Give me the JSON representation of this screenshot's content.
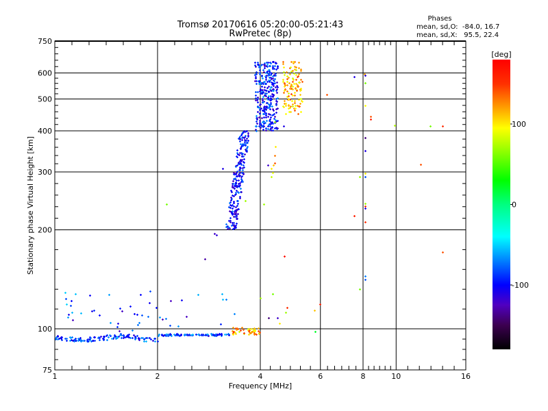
{
  "chart_data": {
    "type": "scatter",
    "title": "Tromsø 20170616 05:20:00-05:21:43",
    "subtitle": "RwPretec (8p)",
    "xlabel": "Frequency [MHz]",
    "ylabel": "Stationary phase Virtual Height [km]",
    "xscale": "log",
    "yscale": "log",
    "xlim": [
      1,
      16
    ],
    "ylim": [
      75,
      750
    ],
    "grid": true,
    "x_ticks": [
      1,
      2,
      4,
      6,
      8,
      10,
      16
    ],
    "x_tick_labels": [
      "1",
      "2",
      "4",
      "6",
      "8",
      "10",
      "16"
    ],
    "y_ticks": [
      75,
      100,
      200,
      300,
      400,
      500,
      600,
      750
    ],
    "y_tick_labels": [
      "75",
      "100",
      "200",
      "300",
      "400",
      "500",
      "600",
      "750"
    ],
    "grid_x": [
      2,
      4,
      6,
      8,
      10
    ],
    "grid_y": [
      100,
      200,
      300,
      400,
      500,
      600
    ],
    "stats": {
      "heading": "Phases",
      "o_line": "mean, sd,O:  -84.0, 16.7",
      "x_line": "mean, sd,X:   95.5, 22.4"
    },
    "colorbar": {
      "label": "[deg]",
      "range": [
        -180,
        180
      ],
      "ticks": [
        100,
        0,
        -100
      ],
      "tick_labels": [
        "100",
        "0",
        "-100"
      ],
      "stops": [
        [
          -180,
          "#000000"
        ],
        [
          -150,
          "#3c0050"
        ],
        [
          -125,
          "#5000c0"
        ],
        [
          -100,
          "#0000ff"
        ],
        [
          -70,
          "#0080ff"
        ],
        [
          -40,
          "#00ffff"
        ],
        [
          0,
          "#00ff80"
        ],
        [
          30,
          "#00ff00"
        ],
        [
          70,
          "#a0ff00"
        ],
        [
          95,
          "#ffff00"
        ],
        [
          120,
          "#ffa000"
        ],
        [
          150,
          "#ff3000"
        ],
        [
          180,
          "#ff0000"
        ]
      ]
    },
    "clusters": [
      {
        "name": "e-layer-trace",
        "f": [
          1.0,
          3.25
        ],
        "h": [
          92,
          97
        ],
        "phase": [
          -115,
          -55
        ],
        "n": 230
      },
      {
        "name": "e-layer-scatter",
        "f": [
          1.05,
          3.6
        ],
        "h": [
          98,
          132
        ],
        "phase": [
          -130,
          -50
        ],
        "n": 45
      },
      {
        "name": "sporadic-e-x",
        "f": [
          3.3,
          3.98
        ],
        "h": [
          96,
          101
        ],
        "phase": [
          80,
          150
        ],
        "n": 50
      },
      {
        "name": "f1-o-trace",
        "f": [
          3.15,
          3.72
        ],
        "h": [
          200,
          400
        ],
        "phase": [
          -125,
          -70
        ],
        "n": 230,
        "slope": true
      },
      {
        "name": "f2-o-trace",
        "f": [
          3.85,
          4.5
        ],
        "h": [
          400,
          650
        ],
        "phase": [
          -125,
          -60
        ],
        "n": 320
      },
      {
        "name": "f2-x-trace",
        "f": [
          4.65,
          5.3
        ],
        "h": [
          450,
          650
        ],
        "phase": [
          80,
          145
        ],
        "n": 120
      }
    ],
    "points": [
      [
        8.08,
        597,
        120
      ],
      [
        7.55,
        584,
        -110
      ],
      [
        8.1,
        590,
        -110
      ],
      [
        8.1,
        559,
        60
      ],
      [
        6.26,
        515,
        140
      ],
      [
        8.1,
        477,
        95
      ],
      [
        8.4,
        442,
        140
      ],
      [
        8.4,
        435,
        160
      ],
      [
        9.9,
        416,
        75
      ],
      [
        13.7,
        414,
        150
      ],
      [
        12.6,
        414,
        60
      ],
      [
        8.1,
        381,
        -140
      ],
      [
        8.1,
        348,
        -110
      ],
      [
        11.8,
        316,
        140
      ],
      [
        8.1,
        297,
        100
      ],
      [
        7.8,
        290,
        70
      ],
      [
        8.1,
        290,
        -80
      ],
      [
        8.1,
        241,
        70
      ],
      [
        8.1,
        236,
        150
      ],
      [
        8.1,
        233,
        -110
      ],
      [
        7.55,
        221,
        160
      ],
      [
        8.1,
        211,
        150
      ],
      [
        13.7,
        171,
        140
      ],
      [
        8.1,
        145,
        -70
      ],
      [
        8.1,
        141,
        -80
      ],
      [
        7.8,
        132,
        60
      ],
      [
        5.98,
        119,
        160
      ],
      [
        5.8,
        98,
        20
      ],
      [
        2.12,
        240,
        60
      ],
      [
        2.75,
        163,
        -130
      ],
      [
        4.7,
        166,
        170
      ],
      [
        4.42,
        358,
        100
      ],
      [
        4.4,
        337,
        130
      ],
      [
        4.4,
        320,
        140
      ],
      [
        4.37,
        315,
        110
      ],
      [
        4.2,
        315,
        -120
      ],
      [
        4.3,
        307,
        100
      ],
      [
        4.35,
        298,
        90
      ],
      [
        4.3,
        290,
        80
      ],
      [
        4.4,
        426,
        70
      ],
      [
        4.67,
        414,
        -110
      ],
      [
        4.1,
        240,
        70
      ],
      [
        3.1,
        307,
        -110
      ],
      [
        2.93,
        195,
        -120
      ],
      [
        2.98,
        193,
        -115
      ],
      [
        3.62,
        245,
        70
      ],
      [
        4.0,
        124,
        70
      ],
      [
        4.35,
        128,
        60
      ],
      [
        4.5,
        108,
        -120
      ],
      [
        4.55,
        104,
        100
      ],
      [
        4.75,
        112,
        70
      ],
      [
        4.8,
        116,
        150
      ],
      [
        4.22,
        108,
        -140
      ],
      [
        5.75,
        114,
        110
      ],
      [
        1.78,
        127,
        -100
      ],
      [
        1.3,
        114,
        -90
      ],
      [
        1.35,
        110,
        -100
      ]
    ]
  }
}
